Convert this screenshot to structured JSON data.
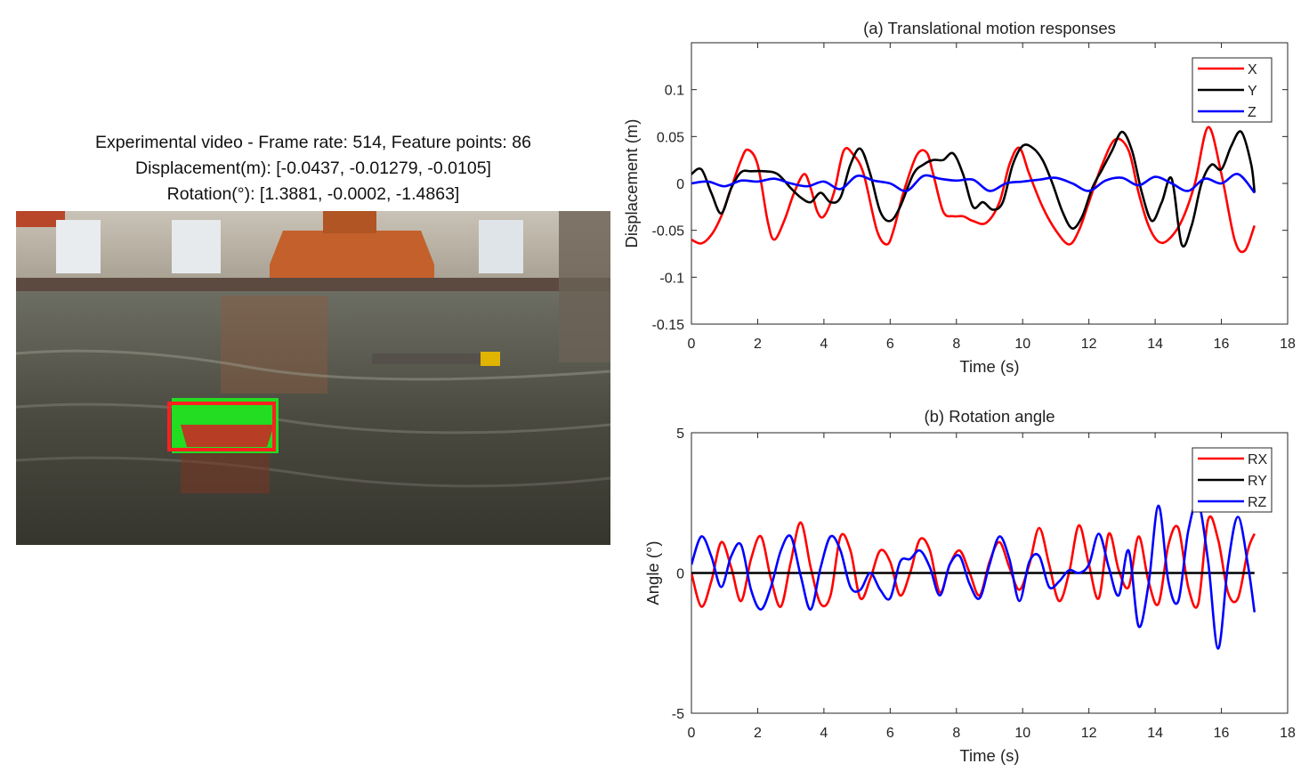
{
  "video": {
    "caption_line1": "Experimental video - Frame rate: 514, Feature points: 86",
    "caption_line2": "Displacement(m): [-0.0437, -0.01279, -0.0105]",
    "caption_line3": "Rotation(°): [1.3881, -0.0002, -1.4863]"
  },
  "chart_data": [
    {
      "type": "line",
      "title": "(a) Translational motion responses",
      "xlabel": "Time (s)",
      "ylabel": "Displacement (m)",
      "xlim": [
        0,
        18
      ],
      "ylim": [
        -0.15,
        0.15
      ],
      "xticks": [
        0,
        2,
        4,
        6,
        8,
        10,
        12,
        14,
        16,
        18
      ],
      "yticks": [
        -0.15,
        -0.1,
        -0.05,
        0,
        0.05,
        0.1
      ],
      "ytick_labels": [
        "-0.15",
        "-0.1",
        "-0.05",
        "0",
        "0.05",
        "0.1"
      ],
      "legend_position": "top-right",
      "series": [
        {
          "name": "X",
          "color": "#ff0000",
          "x": [
            0,
            0.3,
            0.6,
            0.9,
            1.2,
            1.5,
            1.7,
            2.0,
            2.3,
            2.5,
            2.8,
            3.1,
            3.4,
            3.6,
            3.8,
            4.0,
            4.3,
            4.6,
            4.9,
            5.2,
            5.6,
            5.9,
            6.1,
            6.4,
            6.8,
            7.1,
            7.3,
            7.6,
            7.9,
            8.2,
            8.5,
            8.9,
            9.3,
            9.6,
            9.9,
            10.2,
            10.6,
            11.0,
            11.4,
            11.7,
            12.0,
            12.4,
            12.8,
            13.2,
            13.5,
            13.8,
            14.1,
            14.4,
            14.8,
            15.2,
            15.6,
            16.0,
            16.4,
            16.7,
            17.0
          ],
          "y": [
            -0.06,
            -0.064,
            -0.055,
            -0.035,
            -0.005,
            0.025,
            0.036,
            0.02,
            -0.04,
            -0.06,
            -0.04,
            -0.01,
            0.01,
            -0.005,
            -0.03,
            -0.035,
            -0.01,
            0.035,
            0.03,
            0.01,
            -0.05,
            -0.065,
            -0.05,
            -0.01,
            0.03,
            0.033,
            0.01,
            -0.03,
            -0.035,
            -0.035,
            -0.04,
            -0.042,
            -0.02,
            0.02,
            0.038,
            0.01,
            -0.025,
            -0.05,
            -0.065,
            -0.05,
            -0.02,
            0.02,
            0.047,
            0.035,
            -0.01,
            -0.045,
            -0.062,
            -0.06,
            -0.04,
            0.0,
            0.06,
            0.01,
            -0.06,
            -0.072,
            -0.045
          ]
        },
        {
          "name": "Y",
          "color": "#000000",
          "x": [
            0,
            0.3,
            0.6,
            0.9,
            1.2,
            1.5,
            1.8,
            2.2,
            2.6,
            3.0,
            3.3,
            3.6,
            3.9,
            4.2,
            4.5,
            4.8,
            5.1,
            5.4,
            5.7,
            6.0,
            6.3,
            6.7,
            7.0,
            7.3,
            7.6,
            7.9,
            8.2,
            8.5,
            8.8,
            9.1,
            9.4,
            9.7,
            10.0,
            10.3,
            10.6,
            10.9,
            11.2,
            11.5,
            11.8,
            12.1,
            12.4,
            12.7,
            13.0,
            13.3,
            13.6,
            13.9,
            14.2,
            14.5,
            14.8,
            15.1,
            15.4,
            15.7,
            16.0,
            16.3,
            16.6,
            16.9,
            17.0
          ],
          "y": [
            0.01,
            0.015,
            -0.01,
            -0.032,
            -0.005,
            0.012,
            0.013,
            0.013,
            0.01,
            -0.005,
            -0.015,
            -0.02,
            -0.01,
            -0.02,
            -0.015,
            0.02,
            0.037,
            0.01,
            -0.03,
            -0.04,
            -0.025,
            0.01,
            0.02,
            0.025,
            0.025,
            0.032,
            0.01,
            -0.025,
            -0.02,
            -0.028,
            -0.02,
            0.02,
            0.04,
            0.038,
            0.025,
            0.0,
            -0.03,
            -0.048,
            -0.035,
            -0.005,
            0.015,
            0.035,
            0.055,
            0.035,
            -0.01,
            -0.04,
            -0.02,
            0.005,
            -0.065,
            -0.045,
            0.0,
            0.02,
            0.015,
            0.04,
            0.055,
            0.02,
            -0.01
          ]
        },
        {
          "name": "Z",
          "color": "#0000ff",
          "x": [
            0,
            0.5,
            1.0,
            1.5,
            2.0,
            2.5,
            3.0,
            3.5,
            4.0,
            4.5,
            5.0,
            5.5,
            6.0,
            6.5,
            7.0,
            7.5,
            8.0,
            8.5,
            9.0,
            9.5,
            10.0,
            10.5,
            11.0,
            11.5,
            12.0,
            12.5,
            13.0,
            13.5,
            14.0,
            14.5,
            15.0,
            15.5,
            16.0,
            16.5,
            17.0
          ],
          "y": [
            0.0,
            0.002,
            -0.003,
            0.003,
            0.002,
            0.005,
            0.0,
            -0.003,
            0.002,
            -0.006,
            0.008,
            0.003,
            0.0,
            -0.008,
            0.008,
            0.005,
            0.003,
            0.004,
            -0.008,
            0.0,
            0.002,
            0.004,
            0.006,
            0.0,
            -0.008,
            0.003,
            0.006,
            -0.002,
            0.007,
            0.0,
            -0.008,
            0.005,
            0.0,
            0.01,
            -0.01
          ]
        }
      ]
    },
    {
      "type": "line",
      "title": "(b) Rotation angle",
      "xlabel": "Time (s)",
      "ylabel": "Angle (°)",
      "xlim": [
        0,
        18
      ],
      "ylim": [
        -5,
        5
      ],
      "xticks": [
        0,
        2,
        4,
        6,
        8,
        10,
        12,
        14,
        16,
        18
      ],
      "yticks": [
        -5,
        0,
        5
      ],
      "ytick_labels": [
        "-5",
        "0",
        "5"
      ],
      "legend_position": "top-right",
      "series": [
        {
          "name": "RX",
          "color": "#ff0000",
          "x": [
            0,
            0.3,
            0.6,
            0.9,
            1.2,
            1.5,
            1.8,
            2.1,
            2.4,
            2.7,
            3.0,
            3.3,
            3.6,
            3.9,
            4.2,
            4.5,
            4.8,
            5.1,
            5.4,
            5.7,
            6.0,
            6.3,
            6.6,
            6.9,
            7.2,
            7.5,
            7.8,
            8.1,
            8.4,
            8.7,
            9.0,
            9.3,
            9.6,
            9.9,
            10.2,
            10.5,
            10.8,
            11.1,
            11.4,
            11.7,
            12.0,
            12.3,
            12.6,
            12.9,
            13.2,
            13.5,
            13.8,
            14.1,
            14.4,
            14.7,
            15.0,
            15.3,
            15.6,
            15.9,
            16.2,
            16.5,
            16.8,
            17.0
          ],
          "y": [
            0.0,
            -1.2,
            -0.3,
            1.1,
            0.2,
            -1.0,
            0.5,
            1.3,
            -0.2,
            -1.2,
            0.4,
            1.8,
            0.2,
            -1.1,
            -0.8,
            1.3,
            0.8,
            -0.9,
            -0.2,
            0.8,
            0.4,
            -0.8,
            0.0,
            1.2,
            0.8,
            -0.7,
            0.3,
            0.8,
            0.0,
            -0.8,
            0.4,
            1.1,
            0.2,
            -0.6,
            0.3,
            1.6,
            0.3,
            -1.0,
            0.0,
            1.7,
            0.3,
            -0.9,
            1.4,
            0.1,
            -0.5,
            1.3,
            -0.3,
            -1.1,
            1.0,
            1.6,
            -0.5,
            -1.1,
            1.9,
            1.2,
            -0.7,
            -0.9,
            0.8,
            1.4
          ]
        },
        {
          "name": "RY",
          "color": "#000000",
          "x": [
            0,
            17.0
          ],
          "y": [
            0.0,
            0.0
          ]
        },
        {
          "name": "RZ",
          "color": "#0000ff",
          "x": [
            0,
            0.3,
            0.6,
            0.9,
            1.2,
            1.5,
            1.8,
            2.1,
            2.4,
            2.7,
            3.0,
            3.3,
            3.6,
            3.9,
            4.2,
            4.5,
            4.8,
            5.1,
            5.4,
            5.7,
            6.0,
            6.3,
            6.6,
            6.9,
            7.2,
            7.5,
            7.8,
            8.1,
            8.4,
            8.7,
            9.0,
            9.3,
            9.6,
            9.9,
            10.2,
            10.5,
            10.8,
            11.1,
            11.4,
            11.7,
            12.0,
            12.3,
            12.6,
            12.9,
            13.2,
            13.5,
            13.8,
            14.1,
            14.4,
            14.7,
            15.0,
            15.3,
            15.6,
            15.9,
            16.2,
            16.5,
            16.8,
            17.0
          ],
          "y": [
            0.3,
            1.3,
            0.6,
            -0.5,
            0.6,
            1.0,
            -0.6,
            -1.3,
            -0.5,
            0.8,
            1.3,
            -0.1,
            -1.3,
            0.2,
            1.3,
            0.8,
            -0.5,
            -0.6,
            0.0,
            -0.6,
            -0.9,
            0.4,
            0.5,
            0.8,
            0.2,
            -0.8,
            0.3,
            0.6,
            -0.4,
            -0.9,
            0.3,
            1.3,
            0.5,
            -1.0,
            0.4,
            0.6,
            -0.5,
            -0.3,
            0.1,
            0.0,
            0.3,
            1.4,
            0.2,
            -0.8,
            0.8,
            -1.9,
            -0.4,
            2.4,
            -0.3,
            -1.0,
            1.5,
            2.5,
            0.4,
            -2.7,
            0.3,
            2.0,
            0.3,
            -1.4
          ]
        }
      ]
    }
  ]
}
